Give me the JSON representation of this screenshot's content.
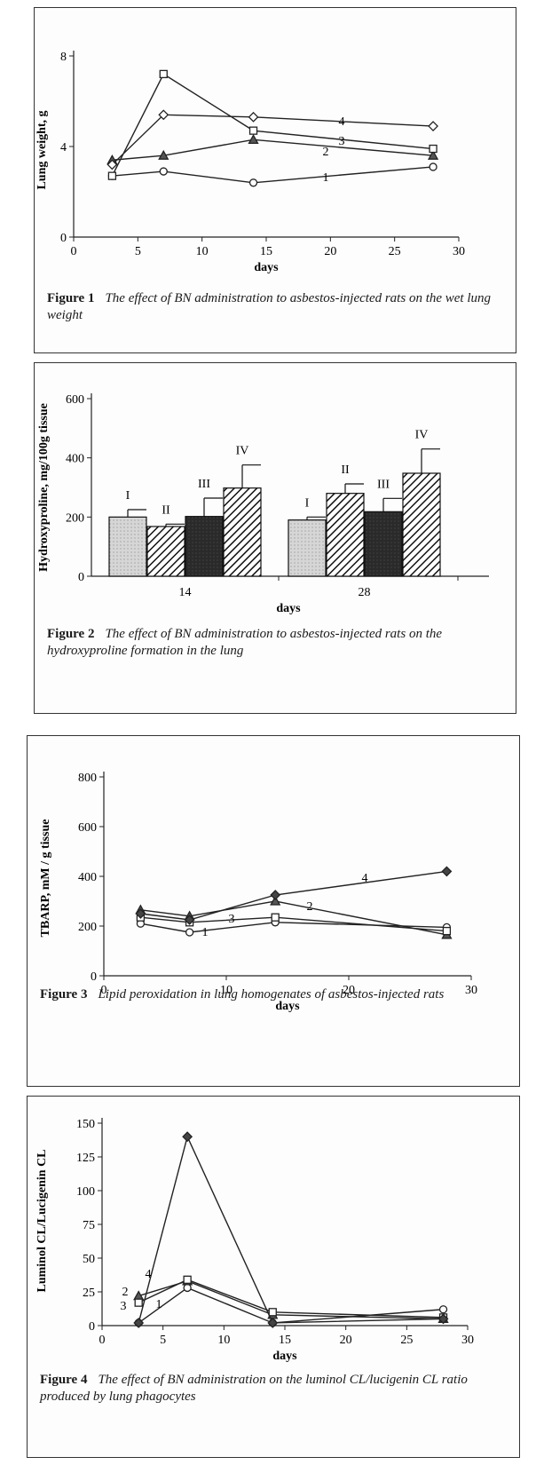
{
  "figures": [
    {
      "id": "fig1",
      "caption_label": "Figure 1",
      "caption_text": "The effect of BN administration to asbestos-injected rats on the wet lung weight"
    },
    {
      "id": "fig2",
      "caption_label": "Figure 2",
      "caption_text": "The effect of BN administration to asbestos-injected rats on the hydroxyproline formation in the lung"
    },
    {
      "id": "fig3",
      "caption_label": "Figure 3",
      "caption_text": "Lipid peroxidation in lung homogenates of asbestos-injected rats"
    },
    {
      "id": "fig4",
      "caption_label": "Figure 4",
      "caption_text": "The effect of BN administration on the luminol CL/lucigenin CL ratio produced by lung phagocytes"
    }
  ],
  "chart_data": [
    {
      "type": "line",
      "title": "",
      "xlabel": "days",
      "ylabel": "Lung weight, g",
      "xlim": [
        0,
        30
      ],
      "ylim": [
        0,
        8
      ],
      "xticks": [
        0,
        5,
        10,
        15,
        20,
        25,
        30
      ],
      "yticks": [
        0,
        4,
        8
      ],
      "series": [
        {
          "name": "1",
          "marker": "circle",
          "x": [
            3,
            7,
            14,
            28
          ],
          "y": [
            2.7,
            2.9,
            2.4,
            3.1
          ]
        },
        {
          "name": "2",
          "marker": "triangle",
          "x": [
            3,
            7,
            14,
            28
          ],
          "y": [
            3.4,
            3.6,
            4.3,
            3.6
          ]
        },
        {
          "name": "3",
          "marker": "square",
          "x": [
            3,
            7,
            14,
            28
          ],
          "y": [
            2.7,
            7.2,
            4.7,
            3.9
          ]
        },
        {
          "name": "4",
          "marker": "diamond",
          "x": [
            3,
            7,
            14,
            28
          ],
          "y": [
            3.2,
            5.4,
            5.3,
            4.9
          ]
        }
      ]
    },
    {
      "type": "bar",
      "title": "",
      "xlabel": "days",
      "ylabel": "Hydroxyproline, mg/100g tissue",
      "ylim": [
        0,
        600
      ],
      "yticks": [
        0,
        200,
        400,
        600
      ],
      "categories": [
        "14",
        "28"
      ],
      "series": [
        {
          "name": "I",
          "values": [
            200,
            190
          ],
          "errors": [
            25,
            10
          ],
          "pattern": "dotted-light"
        },
        {
          "name": "II",
          "values": [
            168,
            280
          ],
          "errors": [
            8,
            32
          ],
          "pattern": "hatch"
        },
        {
          "name": "III",
          "values": [
            202,
            218
          ],
          "errors": [
            62,
            45
          ],
          "pattern": "dark"
        },
        {
          "name": "IV",
          "values": [
            298,
            348
          ],
          "errors": [
            78,
            82
          ],
          "pattern": "hatch"
        }
      ]
    },
    {
      "type": "line",
      "title": "",
      "xlabel": "days",
      "ylabel": "TBARP, mM / g tissue",
      "xlim": [
        0,
        30
      ],
      "ylim": [
        0,
        800
      ],
      "xticks": [
        0,
        10,
        20,
        30
      ],
      "yticks": [
        0,
        200,
        400,
        600,
        800
      ],
      "series": [
        {
          "name": "1",
          "marker": "circle",
          "x": [
            3,
            7,
            14,
            28
          ],
          "y": [
            210,
            175,
            215,
            195
          ]
        },
        {
          "name": "2",
          "marker": "triangle",
          "x": [
            3,
            7,
            14,
            28
          ],
          "y": [
            265,
            240,
            300,
            165
          ]
        },
        {
          "name": "3",
          "marker": "square",
          "x": [
            3,
            7,
            14,
            28
          ],
          "y": [
            235,
            215,
            235,
            180
          ]
        },
        {
          "name": "4",
          "marker": "diamond",
          "x": [
            3,
            7,
            14,
            28
          ],
          "y": [
            250,
            225,
            325,
            420
          ]
        }
      ]
    },
    {
      "type": "line",
      "title": "",
      "xlabel": "days",
      "ylabel": "Luminol CL/Lucigenin CL",
      "xlim": [
        0,
        30
      ],
      "ylim": [
        0,
        150
      ],
      "xticks": [
        0,
        5,
        10,
        15,
        20,
        25,
        30
      ],
      "yticks": [
        0,
        25,
        50,
        75,
        100,
        125,
        150
      ],
      "series": [
        {
          "name": "1",
          "marker": "circle",
          "x": [
            3,
            7,
            14,
            28
          ],
          "y": [
            2,
            28,
            2,
            12
          ]
        },
        {
          "name": "2",
          "marker": "triangle",
          "x": [
            3,
            7,
            14,
            28
          ],
          "y": [
            22,
            33,
            8,
            5
          ]
        },
        {
          "name": "3",
          "marker": "square",
          "x": [
            3,
            7,
            14,
            28
          ],
          "y": [
            17,
            34,
            10,
            6
          ]
        },
        {
          "name": "4",
          "marker": "diamond",
          "x": [
            3,
            7,
            14,
            28
          ],
          "y": [
            2,
            140,
            2,
            5
          ]
        }
      ]
    }
  ]
}
